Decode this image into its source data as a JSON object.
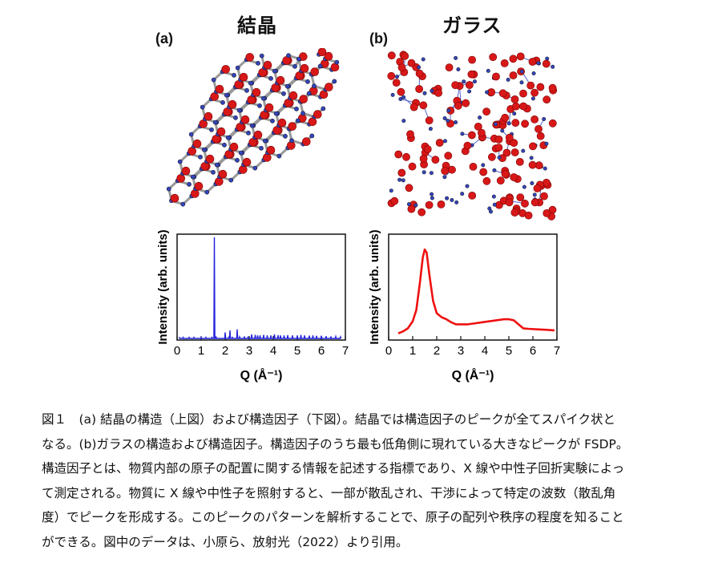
{
  "panels": {
    "crystal_title": "結晶",
    "glass_title": "ガラス",
    "label_a": "(a)",
    "label_b": "(b)"
  },
  "chart_data": [
    {
      "type": "line",
      "panel": "(a)",
      "xlabel": "Q (Å⁻¹)",
      "ylabel": "Intensity (arb. units)",
      "xlim": [
        0,
        7
      ],
      "ylim": [
        0,
        1
      ],
      "xticks": [
        0,
        1,
        2,
        3,
        4,
        5,
        6,
        7
      ],
      "color": "#2222dd",
      "series": [
        {
          "values": [
            [
              0.1,
              0.008
            ],
            [
              0.25,
              0.01
            ],
            [
              0.5,
              0.01
            ],
            [
              0.7,
              0.01
            ],
            [
              1.0,
              0.01
            ],
            [
              1.2,
              0.01
            ],
            [
              1.45,
              0.01
            ],
            [
              1.55,
              1.0
            ],
            [
              1.62,
              0.02
            ],
            [
              2.0,
              0.06
            ],
            [
              2.15,
              0.01
            ],
            [
              2.2,
              0.08
            ],
            [
              2.3,
              0.01
            ],
            [
              2.5,
              0.09
            ],
            [
              2.6,
              0.015
            ],
            [
              2.8,
              0.02
            ],
            [
              2.95,
              0.012
            ],
            [
              3.1,
              0.04
            ],
            [
              3.25,
              0.035
            ],
            [
              3.35,
              0.03
            ],
            [
              3.45,
              0.03
            ],
            [
              3.6,
              0.035
            ],
            [
              3.75,
              0.03
            ],
            [
              3.9,
              0.03
            ],
            [
              4.05,
              0.04
            ],
            [
              4.2,
              0.032
            ],
            [
              4.3,
              0.03
            ],
            [
              4.45,
              0.03
            ],
            [
              4.6,
              0.033
            ],
            [
              4.8,
              0.03
            ],
            [
              5.0,
              0.03
            ],
            [
              5.15,
              0.035
            ],
            [
              5.3,
              0.03
            ],
            [
              5.5,
              0.028
            ],
            [
              5.65,
              0.03
            ],
            [
              5.8,
              0.025
            ],
            [
              6.0,
              0.027
            ],
            [
              6.2,
              0.022
            ],
            [
              6.4,
              0.02
            ],
            [
              6.6,
              0.018
            ],
            [
              6.8,
              0.015
            ]
          ]
        }
      ]
    },
    {
      "type": "line",
      "panel": "(b)",
      "xlabel": "Q (Å⁻¹)",
      "ylabel": "Intensity (arb. units)",
      "xlim": [
        0,
        7
      ],
      "ylim": [
        0,
        1
      ],
      "xticks": [
        0,
        1,
        2,
        3,
        4,
        5,
        6,
        7
      ],
      "color": "#ee1111",
      "series": [
        {
          "values": [
            [
              0.4,
              0.05
            ],
            [
              0.6,
              0.07
            ],
            [
              0.8,
              0.1
            ],
            [
              1.0,
              0.17
            ],
            [
              1.15,
              0.28
            ],
            [
              1.3,
              0.55
            ],
            [
              1.42,
              0.8
            ],
            [
              1.5,
              0.88
            ],
            [
              1.58,
              0.85
            ],
            [
              1.7,
              0.62
            ],
            [
              1.85,
              0.37
            ],
            [
              2.0,
              0.25
            ],
            [
              2.2,
              0.21
            ],
            [
              2.4,
              0.19
            ],
            [
              2.6,
              0.16
            ],
            [
              2.8,
              0.14
            ],
            [
              3.0,
              0.14
            ],
            [
              3.3,
              0.14
            ],
            [
              3.6,
              0.15
            ],
            [
              3.9,
              0.16
            ],
            [
              4.2,
              0.17
            ],
            [
              4.5,
              0.18
            ],
            [
              4.8,
              0.19
            ],
            [
              5.0,
              0.19
            ],
            [
              5.2,
              0.18
            ],
            [
              5.4,
              0.14
            ],
            [
              5.6,
              0.1
            ],
            [
              5.8,
              0.095
            ],
            [
              6.2,
              0.09
            ],
            [
              6.6,
              0.085
            ],
            [
              6.9,
              0.08
            ]
          ]
        }
      ]
    }
  ],
  "caption": {
    "lines": [
      "図１　(a) 結晶の構造（上図）および構造因子（下図）。結晶では構造因子のピークが全てスパイク状と",
      "なる。(b)ガラスの構造および構造因子。構造因子のうち最も低角側に現れている大きなピークが FSDP。",
      "構造因子とは、物質内部の原子の配置に関する情報を記述する指標であり、X 線や中性子回折実験によっ",
      "て測定される。物質に X 線や中性子を照射すると、一部が散乱され、干渉によって特定の波数（散乱角",
      "度）でピークを形成する。このピークのパターンを解析することで、原子の配列や秩序の程度を知ること",
      "ができる。図中のデータは、小原ら、放射光（2022）より引用。"
    ]
  }
}
